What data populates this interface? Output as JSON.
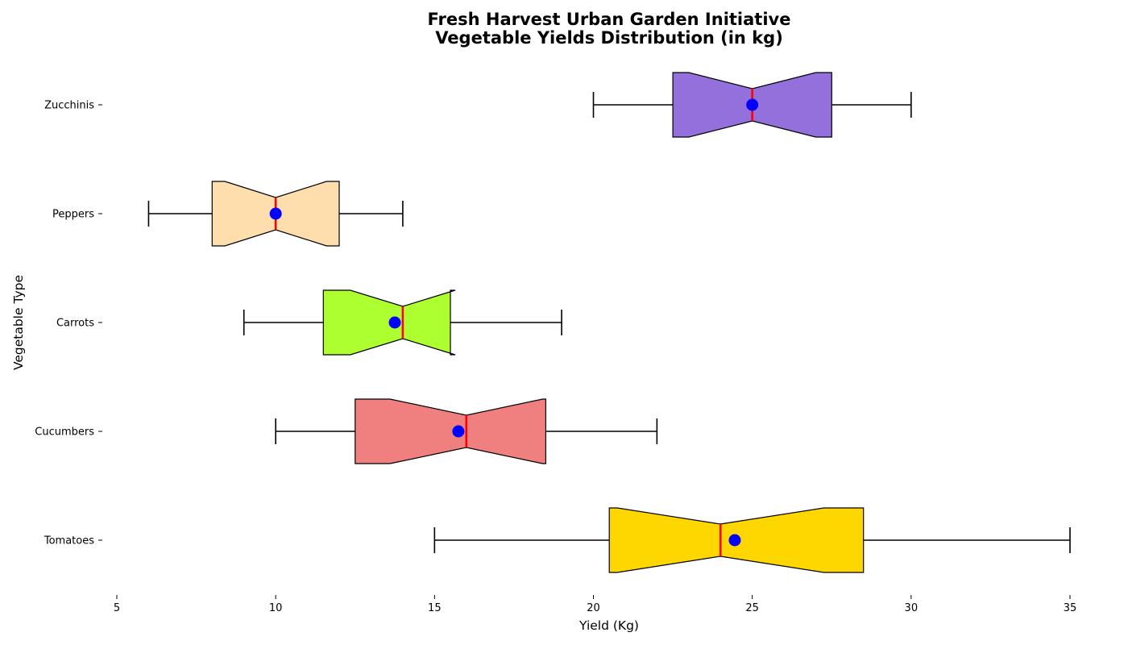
{
  "chart_data": {
    "type": "boxplot",
    "orientation": "horizontal",
    "notched": true,
    "title": [
      "Fresh Harvest Urban Garden Initiative",
      "Vegetable Yields Distribution (in kg)"
    ],
    "xlabel": "Yield (Kg)",
    "ylabel": "Vegetable Type",
    "xlim": [
      5,
      36
    ],
    "xticks": [
      5,
      10,
      15,
      20,
      25,
      30,
      35
    ],
    "grid": false,
    "median_color": "#ff0000",
    "mean_color": "#0000ff",
    "categories": [
      "Tomatoes",
      "Cucumbers",
      "Carrots",
      "Peppers",
      "Zucchinis"
    ],
    "boxes": [
      {
        "label": "Tomatoes",
        "whisker_low": 15,
        "q1": 20.5,
        "median": 24,
        "q3": 28.5,
        "whisker_high": 35,
        "mean": 24.45,
        "notch_low": 20.75,
        "notch_high": 27.25,
        "color": "#ffd700"
      },
      {
        "label": "Cucumbers",
        "whisker_low": 10,
        "q1": 12.5,
        "median": 16,
        "q3": 18.5,
        "whisker_high": 22,
        "mean": 15.75,
        "notch_low": 13.6,
        "notch_high": 18.4,
        "color": "#f08080"
      },
      {
        "label": "Carrots",
        "whisker_low": 9,
        "q1": 11.5,
        "median": 14,
        "q3": 15.5,
        "whisker_high": 19,
        "mean": 13.75,
        "notch_low": 12.35,
        "notch_high": 15.65,
        "color": "#adff2f"
      },
      {
        "label": "Peppers",
        "whisker_low": 6,
        "q1": 8,
        "median": 10,
        "q3": 12,
        "whisker_high": 14,
        "mean": 10,
        "notch_low": 8.4,
        "notch_high": 11.6,
        "color": "#ffdead"
      },
      {
        "label": "Zucchinis",
        "whisker_low": 20,
        "q1": 22.5,
        "median": 25,
        "q3": 27.5,
        "whisker_high": 30,
        "mean": 25,
        "notch_low": 23.0,
        "notch_high": 27.0,
        "color": "#9370db"
      }
    ]
  }
}
